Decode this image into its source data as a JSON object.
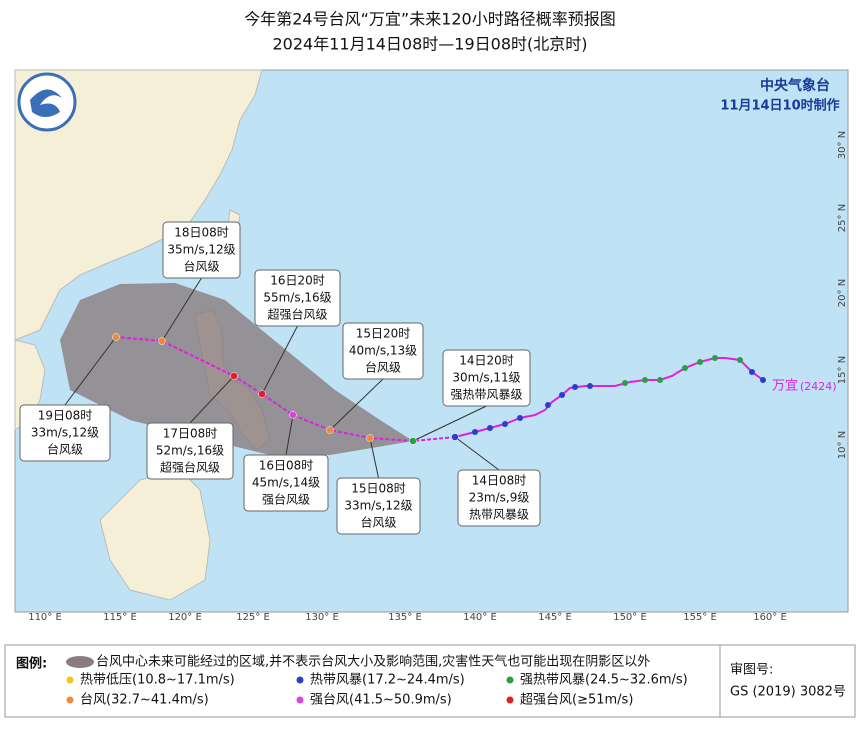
{
  "header": {
    "title": "今年第24号台风“万宜”未来120小时路径概率预报图",
    "subtitle": "2024年11月14日08时—19日08时(北京时)",
    "agency": "中央气象台",
    "issued": "11月14日10时制作"
  },
  "map": {
    "lon_labels": [
      "110° E",
      "115° E",
      "120° E",
      "125° E",
      "130° E",
      "135° E",
      "140° E",
      "145° E",
      "150° E",
      "155° E",
      "160° E"
    ],
    "lat_labels": [
      "30° N",
      "25° N",
      "20° N",
      "15° N",
      "10° N"
    ],
    "storm_name": "万宜",
    "storm_code": "(2424)"
  },
  "forecasts": [
    {
      "time": "18日08时",
      "wind": "35m/s,12级",
      "level": "台风级"
    },
    {
      "time": "16日20时",
      "wind": "55m/s,16级",
      "level": "超强台风级"
    },
    {
      "time": "15日20时",
      "wind": "40m/s,13级",
      "level": "台风级"
    },
    {
      "time": "14日20时",
      "wind": "30m/s,11级",
      "level": "强热带风暴级"
    },
    {
      "time": "19日08时",
      "wind": "33m/s,12级",
      "level": "台风级"
    },
    {
      "time": "17日08时",
      "wind": "52m/s,16级",
      "level": "超强台风级"
    },
    {
      "time": "16日08时",
      "wind": "45m/s,14级",
      "level": "强台风级"
    },
    {
      "time": "15日08时",
      "wind": "33m/s,12级",
      "level": "台风级"
    },
    {
      "time": "14日08时",
      "wind": "23m/s,9级",
      "level": "热带风暴级"
    }
  ],
  "legend": {
    "title": "图例:",
    "cone": "台风中心未来可能经过的区域,并不表示台风大小及影响范围,灾害性天气也可能出现在阴影区以外",
    "items": [
      "热带低压(10.8~17.1m/s)",
      "热带风暴(17.2~24.4m/s)",
      "强热带风暴(24.5~32.6m/s)",
      "台风(32.7~41.4m/s)",
      "强台风(41.5~50.9m/s)",
      "超强台风(≥51m/s)"
    ]
  },
  "review": {
    "label": "审图号:",
    "number": "GS (2019) 3082号"
  }
}
